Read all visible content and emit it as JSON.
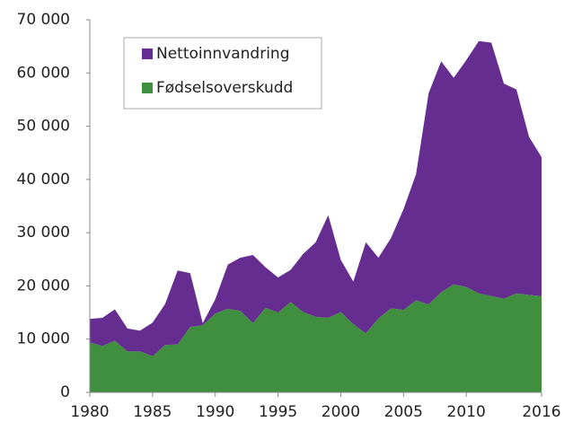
{
  "chart_data": {
    "type": "stacked_area",
    "x": [
      1980,
      1981,
      1982,
      1983,
      1984,
      1985,
      1986,
      1987,
      1988,
      1989,
      1990,
      1991,
      1992,
      1993,
      1994,
      1995,
      1996,
      1997,
      1998,
      1999,
      2000,
      2001,
      2002,
      2003,
      2004,
      2005,
      2006,
      2007,
      2008,
      2009,
      2010,
      2011,
      2012,
      2013,
      2014,
      2015,
      2016
    ],
    "series": [
      {
        "name": "Nettoinnvandring",
        "color": "#662d91",
        "values": [
          4400,
          5300,
          5900,
          4300,
          3900,
          6300,
          7700,
          13900,
          10100,
          400,
          2700,
          8300,
          10000,
          12800,
          7600,
          6600,
          6000,
          10900,
          14000,
          19300,
          9800,
          8000,
          17100,
          11400,
          13200,
          18900,
          23700,
          39700,
          43400,
          38800,
          42600,
          47400,
          47600,
          40400,
          38300,
          29700,
          26100
        ]
      },
      {
        "name": "Fødselsoverskudd",
        "color": "#3f8f3f",
        "values": [
          9400,
          8700,
          9700,
          7700,
          7700,
          6800,
          8900,
          9000,
          12300,
          12600,
          14800,
          15700,
          15300,
          13000,
          15900,
          15000,
          17000,
          15100,
          14200,
          14000,
          15100,
          12800,
          11100,
          13900,
          15800,
          15500,
          17300,
          16500,
          18800,
          20300,
          19800,
          18600,
          18100,
          17600,
          18600,
          18300,
          18100
        ]
      }
    ],
    "xlim": [
      1980,
      2016
    ],
    "xticks": [
      1980,
      1985,
      1990,
      1995,
      2000,
      2005,
      2010,
      2016
    ],
    "ylim": [
      0,
      70000
    ],
    "yticks": [
      0,
      {
        "value": 10000,
        "label": "10 000"
      },
      {
        "value": 20000,
        "label": "20 000"
      },
      {
        "value": 30000,
        "label": "30 000"
      },
      {
        "value": 40000,
        "label": "40 000"
      },
      {
        "value": 50000,
        "label": "50 000"
      },
      {
        "value": 60000,
        "label": "60 000"
      },
      {
        "value": 70000,
        "label": "70 000"
      }
    ]
  }
}
